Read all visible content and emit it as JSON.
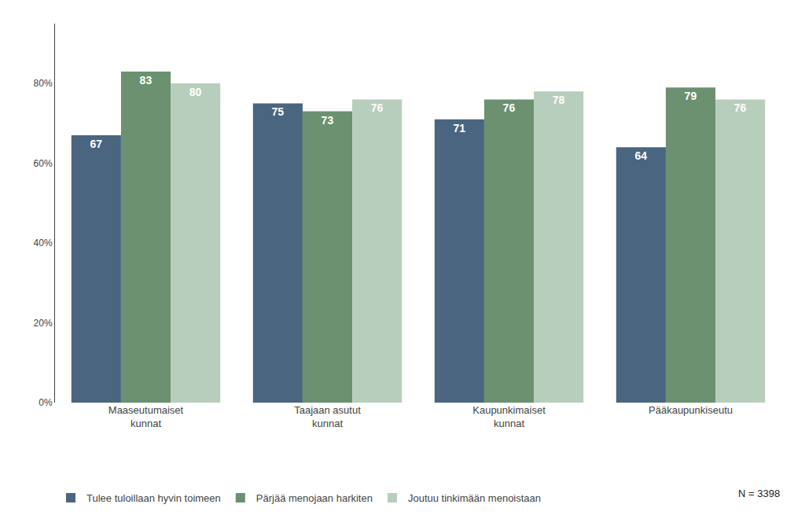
{
  "chart_data": {
    "type": "bar",
    "categories": [
      "Maaseutumaiset\nkunnat",
      "Taajaan asutut\nkunnat",
      "Kaupunkimaiset\nkunnat",
      "Pääkaupunkiseutu"
    ],
    "series": [
      {
        "name": "Tulee tuloillaan hyvin toimeen",
        "color": "#4a6580",
        "values": [
          67,
          75,
          71,
          64
        ]
      },
      {
        "name": "Pärjää menojaan harkiten",
        "color": "#6b9170",
        "values": [
          83,
          73,
          76,
          79
        ]
      },
      {
        "name": "Joutuu tinkimään menoistaan",
        "color": "#b8cebc",
        "values": [
          80,
          76,
          78,
          76
        ]
      }
    ],
    "ylim": [
      0,
      95
    ],
    "yticks": [
      {
        "value": 0,
        "label": "0%"
      },
      {
        "value": 20,
        "label": "20%"
      },
      {
        "value": 40,
        "label": "40%"
      },
      {
        "value": 60,
        "label": "60%"
      },
      {
        "value": 80,
        "label": "80%"
      }
    ],
    "grid": false,
    "legend": "bottom",
    "data_labels": true,
    "annotations": [
      "N = 3398"
    ]
  }
}
